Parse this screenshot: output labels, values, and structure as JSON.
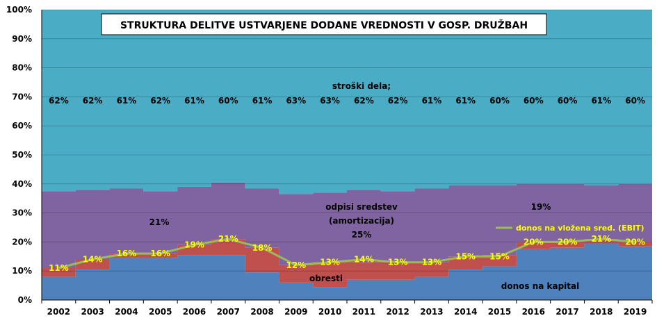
{
  "chart_data": {
    "type": "area",
    "title": "STRUKTURA DELITVE USTVARJENE DODANE VREDNOSTI V GOSP. DRUŽBAH",
    "categories": [
      "2002",
      "2003",
      "2004",
      "2005",
      "2006",
      "2007",
      "2008",
      "2009",
      "2010",
      "2011",
      "2012",
      "2013",
      "2014",
      "2015",
      "2016",
      "2017",
      "2018",
      "2019"
    ],
    "ylim": [
      0,
      100
    ],
    "yticks": [
      "0%",
      "10%",
      "20%",
      "30%",
      "40%",
      "50%",
      "60%",
      "70%",
      "80%",
      "90%",
      "100%"
    ],
    "stacked": true,
    "series": [
      {
        "key": "kapital",
        "color": "#4f81bd",
        "values": [
          8,
          10.5,
          14.5,
          14.5,
          15.5,
          15.5,
          9.5,
          6,
          4.5,
          7,
          7,
          8,
          10.5,
          11.5,
          17.5,
          18,
          19.5,
          18.5
        ]
      },
      {
        "key": "obresti",
        "color": "#c0504d",
        "values": [
          3,
          3.5,
          1.5,
          1.5,
          3.5,
          5.5,
          8.5,
          6,
          8.5,
          6,
          6,
          5,
          4.5,
          4,
          2.5,
          2,
          1.5,
          1.5
        ]
      },
      {
        "key": "odpisi",
        "color": "#8064a2",
        "values": [
          26.5,
          24,
          22.5,
          21.5,
          20,
          19.5,
          20.5,
          24.5,
          24,
          25,
          24.5,
          25.5,
          24.5,
          24,
          20,
          20,
          18.5,
          20
        ]
      },
      {
        "key": "stroski",
        "color": "#4bacc6",
        "values": [
          62.5,
          62,
          61.5,
          62.5,
          61,
          59.5,
          61.5,
          63.5,
          63,
          62,
          62.5,
          61.5,
          60.5,
          60.5,
          60,
          60,
          60.5,
          60
        ]
      }
    ],
    "labor_labels": [
      "62%",
      "62%",
      "61%",
      "62%",
      "61%",
      "60%",
      "61%",
      "63%",
      "63%",
      "62%",
      "62%",
      "61%",
      "61%",
      "60%",
      "60%",
      "60%",
      "61%",
      "60%"
    ],
    "ebit": {
      "name": "donos na vložena sred. (EBIT)",
      "color": "#9bbb59",
      "values": [
        11,
        14,
        16,
        16,
        19,
        21,
        18,
        12,
        13,
        14,
        13,
        13,
        15,
        15,
        20,
        20,
        21,
        20
      ],
      "labels": [
        "11%",
        "14%",
        "16%",
        "16%",
        "19%",
        "21%",
        "18%",
        "12%",
        "13%",
        "14%",
        "13%",
        "13%",
        "15%",
        "15%",
        "20%",
        "20%",
        "21%",
        "20%"
      ]
    },
    "annotations": {
      "stroski": "stroški dela;",
      "odpisi_line1": "odpisi sredstev",
      "odpisi_line2": "(amortizacija)",
      "odpisi_pct_center": "25%",
      "odpisi_pct_left": "21%",
      "odpisi_pct_right": "19%",
      "obresti": "obresti",
      "kapital": "donos na kapital"
    },
    "grid": true,
    "legend_placement": "right"
  }
}
